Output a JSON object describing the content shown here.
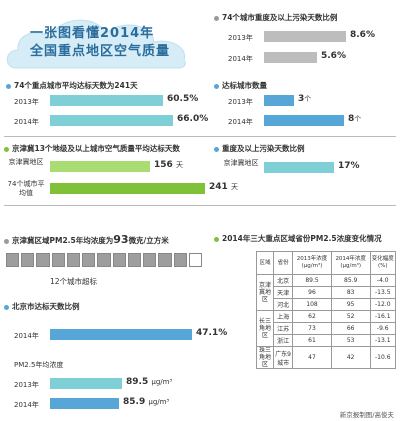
{
  "title": {
    "line1": "一张图看懂2014年",
    "line2": "全国重点地区空气质量"
  },
  "colors": {
    "teal": "#7fcfd6",
    "blue": "#56a6d8",
    "green": "#7fc23a",
    "gray": "#bdbdbd"
  },
  "severe_days": {
    "header": "74个城市重度及以上污染天数比例",
    "rows": [
      {
        "label": "2013年",
        "value": "8.6%"
      },
      {
        "label": "2014年",
        "value": "5.6%"
      }
    ]
  },
  "avg_days": {
    "header": "74个重点城市平均达标天数为241天",
    "rows": [
      {
        "label": "2013年",
        "value": "60.5%"
      },
      {
        "label": "2014年",
        "value": "66.0%"
      }
    ]
  },
  "city_count": {
    "header": "达标城市数量",
    "rows": [
      {
        "label": "2013年",
        "value": "3",
        "unit": "个"
      },
      {
        "label": "2014年",
        "value": "8",
        "unit": "个"
      }
    ]
  },
  "jjj_days": {
    "header": "京津冀13个地级及以上城市空气质量平均达标天数",
    "rows": [
      {
        "label": "京津冀地区",
        "value": "156",
        "unit": "天"
      },
      {
        "label": "74个城市平均值",
        "value": "241",
        "unit": "天"
      }
    ]
  },
  "jjj_severe": {
    "header": "重度及以上污染天数比例",
    "row": {
      "label": "京津冀地区",
      "value": "17%"
    }
  },
  "jjj_pm": {
    "header_pre": "京津冀区域PM2.5年均浓度为",
    "header_num": "93",
    "header_post": "微克/立方米",
    "caption": "12个城市超标",
    "segments_exceeding": 12,
    "segments_total": 13
  },
  "beijing": {
    "header": "北京市达标天数比例",
    "row": {
      "label": "2014年",
      "value": "47.1%"
    },
    "pm_label": "PM2.5年均浓度",
    "pm_rows": [
      {
        "label": "2013年",
        "value": "89.5",
        "unit": "μg/m³"
      },
      {
        "label": "2014年",
        "value": "85.9",
        "unit": "μg/m³"
      }
    ]
  },
  "pm_table": {
    "header": "2014年三大重点区域省份PM2.5浓度变化情况",
    "columns": [
      "区域",
      "省份",
      "2013年浓度(μg/m³)",
      "2014年浓度(μg/m³)",
      "变化幅度(%)"
    ],
    "regions": [
      {
        "name": "京津冀地区",
        "rows": [
          [
            "北京",
            "89.5",
            "85.9",
            "-4.0"
          ],
          [
            "天津",
            "96",
            "83",
            "-13.5"
          ],
          [
            "河北",
            "108",
            "95",
            "-12.0"
          ]
        ]
      },
      {
        "name": "长三角地区",
        "rows": [
          [
            "上海",
            "62",
            "52",
            "-16.1"
          ],
          [
            "江苏",
            "73",
            "66",
            "-9.6"
          ],
          [
            "浙江",
            "61",
            "53",
            "-13.1"
          ]
        ]
      },
      {
        "name": "珠三角地区",
        "rows": [
          [
            "广东9城市",
            "47",
            "42",
            "-10.6"
          ]
        ]
      }
    ]
  },
  "credit": "新京报制图/高俊夫",
  "chart_data": [
    {
      "type": "bar",
      "title": "74个城市重度及以上污染天数比例",
      "categories": [
        "2013年",
        "2014年"
      ],
      "values": [
        8.6,
        5.6
      ]
    },
    {
      "type": "bar",
      "title": "74个重点城市平均达标天数为241天",
      "categories": [
        "2013年",
        "2014年"
      ],
      "values": [
        60.5,
        66.0
      ]
    },
    {
      "type": "bar",
      "title": "达标城市数量",
      "categories": [
        "2013年",
        "2014年"
      ],
      "values": [
        3,
        8
      ]
    },
    {
      "type": "bar",
      "title": "京津冀13个地级及以上城市空气质量平均达标天数",
      "categories": [
        "京津冀地区",
        "74个城市平均值"
      ],
      "values": [
        156,
        241
      ]
    },
    {
      "type": "bar",
      "title": "重度及以上污染天数比例",
      "categories": [
        "京津冀地区"
      ],
      "values": [
        17
      ]
    },
    {
      "type": "bar",
      "title": "北京市达标天数比例",
      "categories": [
        "2014年"
      ],
      "values": [
        47.1
      ]
    },
    {
      "type": "bar",
      "title": "PM2.5年均浓度",
      "categories": [
        "2013年",
        "2014年"
      ],
      "values": [
        89.5,
        85.9
      ]
    }
  ]
}
